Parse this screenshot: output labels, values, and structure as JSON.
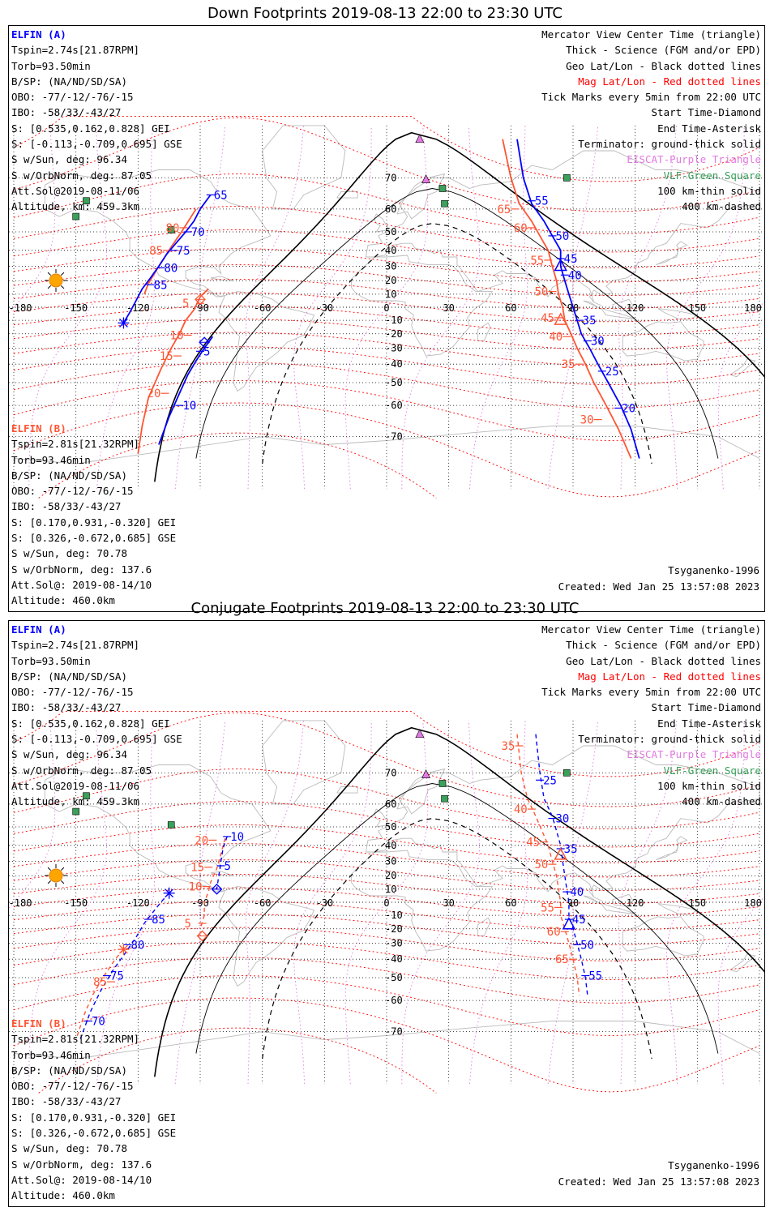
{
  "panels": [
    {
      "title": "Down Footprints 2019-08-13 22:00 to 23:30 UTC",
      "sat_a": {
        "name": "ELFIN (A)",
        "lines": [
          "Tspin=2.74s[21.87RPM]",
          "Torb=93.50min",
          "B/SP: (NA/ND/SD/SA)",
          "OBO: -77/-12/-76/-15",
          "IBO: -58/33/-43/27",
          "S: [0.535,0.162,0.828] GEI",
          "S: [-0.113,-0.709,0.695] GSE",
          "S w/Sun, deg: 96.34",
          "S w/OrbNorm, deg: 87.05",
          "Att.Sol@2019-08-11/06",
          "Altitude, km: 459.3km"
        ]
      },
      "sat_b": {
        "name": "ELFIN (B)",
        "lines": [
          "Tspin=2.81s[21.32RPM]",
          "Torb=93.46min",
          "B/SP: (NA/ND/SD/SA)",
          "OBO: -77/-12/-76/-15",
          "IBO: -58/33/-43/27",
          "S: [0.170,0.931,-0.320] GEI",
          "S: [0.326,-0.672,0.685] GSE",
          "S w/Sun, deg: 70.78",
          "S w/OrbNorm, deg: 137.6",
          "Att.Sol@: 2019-08-14/10",
          "Altitude: 460.0km"
        ]
      },
      "model": "Tsyganenko-1996",
      "created": "Created: Wed Jan 25 13:57:08 2023"
    },
    {
      "title": "Conjugate Footprints 2019-08-13 22:00 to 23:30 UTC",
      "sat_a": {
        "name": "ELFIN (A)",
        "lines": [
          "Tspin=2.74s[21.87RPM]",
          "Torb=93.50min",
          "B/SP: (NA/ND/SD/SA)",
          "OBO: -77/-12/-76/-15",
          "IBO: -58/33/-43/27",
          "S: [0.535,0.162,0.828] GEI",
          "S: [-0.113,-0.709,0.695] GSE",
          "S w/Sun, deg: 96.34",
          "S w/OrbNorm, deg: 87.05",
          "Att.Sol@2019-08-11/06",
          "Altitude, km: 459.3km"
        ]
      },
      "sat_b": {
        "name": "ELFIN (B)",
        "lines": [
          "Tspin=2.81s[21.32RPM]",
          "Torb=93.46min",
          "B/SP: (NA/ND/SD/SA)",
          "OBO: -77/-12/-76/-15",
          "IBO: -58/33/-43/27",
          "S: [0.170,0.931,-0.320] GEI",
          "S: [0.326,-0.672,0.685] GSE",
          "S w/Sun, deg: 70.78",
          "S w/OrbNorm, deg: 137.6",
          "Att.Sol@: 2019-08-14/10",
          "Altitude: 460.0km"
        ]
      },
      "model": "Tsyganenko-1996",
      "created": "Created: Wed Jan 25 13:57:08 2023"
    }
  ],
  "legend": [
    {
      "text": "Mercator View Center Time (triangle)",
      "color": "#000000"
    },
    {
      "text": "Thick - Science (FGM and/or EPD)",
      "color": "#000000"
    },
    {
      "text": "Geo Lat/Lon - Black dotted lines",
      "color": "#000000"
    },
    {
      "text": "Mag Lat/Lon - Red dotted lines",
      "color": "#ff0000"
    },
    {
      "text": "Tick Marks every 5min from 22:00 UTC",
      "color": "#000000"
    },
    {
      "text": "Start Time-Diamond",
      "color": "#000000"
    },
    {
      "text": "End Time-Asterisk",
      "color": "#000000"
    },
    {
      "text": "Terminator: ground-thick solid",
      "color": "#000000"
    },
    {
      "text": "EISCAT-Purple Triangle",
      "color": "#e07ae0"
    },
    {
      "text": "VLF-Green Square",
      "color": "#3aa05a"
    },
    {
      "text": "100 km-thin solid",
      "color": "#000000"
    },
    {
      "text": "400 km-dashed",
      "color": "#000000"
    }
  ],
  "map": {
    "lon_labels": [
      "-180",
      "-150",
      "-120",
      "-90",
      "-60",
      "-30",
      "0",
      "30",
      "60",
      "90",
      "120",
      "150",
      "180"
    ],
    "lat_labels": [
      "70",
      "60",
      "50",
      "40",
      "30",
      "20",
      "10",
      "0",
      "-10",
      "-20",
      "-30",
      "-40",
      "-50",
      "-60",
      "-70"
    ],
    "colors": {
      "sat_a": "#0000ff",
      "sat_b": "#ff5533",
      "mag_grid": "#ff0000",
      "geo_grid": "#000000",
      "eiscat": "#e07ae0",
      "vlf": "#3aa05a",
      "sun": "#ffa500",
      "coast": "#bbbbbb"
    }
  },
  "tracks": [
    {
      "a_left": [
        [
          -85,
          65
        ],
        [
          -90,
          60
        ],
        [
          -93,
          55
        ],
        [
          -97,
          50
        ],
        [
          -101,
          45
        ],
        [
          -106,
          38
        ],
        [
          -110,
          30
        ],
        [
          -114,
          22
        ],
        [
          -118,
          14
        ],
        [
          -121,
          5
        ],
        [
          -124,
          -4
        ],
        [
          -127,
          -12
        ]
      ],
      "a_left_ticks": [
        {
          "lon": -85,
          "lat": 65,
          "label": "65"
        },
        {
          "lon": -96,
          "lat": 50,
          "label": "70"
        },
        {
          "lon": -103,
          "lat": 40,
          "label": "75"
        },
        {
          "lon": -109,
          "lat": 29,
          "label": "80"
        },
        {
          "lon": -114,
          "lat": 17,
          "label": "85"
        }
      ],
      "a_end": [
        -127,
        -12
      ],
      "b_left": [
        [
          -92,
          60
        ],
        [
          -99,
          50
        ],
        [
          -104,
          42
        ],
        [
          -110,
          30
        ],
        [
          -115,
          18
        ],
        [
          -117,
          10
        ]
      ],
      "b_left_ticks": [
        {
          "lon": -98,
          "lat": 52,
          "label": "80"
        },
        {
          "lon": -106,
          "lat": 40,
          "label": "85"
        }
      ],
      "b_lower": [
        [
          -86,
          14
        ],
        [
          -90,
          8
        ],
        [
          -93,
          -2
        ],
        [
          -97,
          -10
        ],
        [
          -100,
          -20
        ],
        [
          -104,
          -30
        ],
        [
          -109,
          -43
        ],
        [
          -115,
          -57
        ],
        [
          -118,
          -67
        ],
        [
          -120,
          -74
        ]
      ],
      "b_lower_ticks": [
        {
          "lon": -90,
          "lat": 3,
          "label": "5"
        },
        {
          "lon": -96,
          "lat": -21,
          "label": "10"
        },
        {
          "lon": -101,
          "lat": -35,
          "label": "15"
        },
        {
          "lon": -107,
          "lat": -55,
          "label": "20"
        }
      ],
      "b_start": [
        -90,
        6
      ],
      "a_lower": [
        [
          -84,
          -22
        ],
        [
          -88,
          -30
        ],
        [
          -92,
          -38
        ],
        [
          -96,
          -46
        ],
        [
          -100,
          -55
        ],
        [
          -105,
          -64
        ],
        [
          -110,
          -72
        ]
      ],
      "a_lower_ticks": [
        {
          "lon": -90,
          "lat": -32,
          "label": "5"
        },
        {
          "lon": -100,
          "lat": -60,
          "label": "10"
        }
      ],
      "a_start": [
        -88,
        -26
      ],
      "a_right": [
        [
          63,
          78
        ],
        [
          66,
          70
        ],
        [
          70,
          62
        ],
        [
          76,
          55
        ],
        [
          80,
          48
        ],
        [
          84,
          40
        ],
        [
          84,
          30
        ],
        [
          86,
          20
        ],
        [
          88,
          10
        ],
        [
          90,
          0
        ],
        [
          92,
          -10
        ],
        [
          94,
          -20
        ],
        [
          98,
          -30
        ],
        [
          102,
          -40
        ],
        [
          107,
          -50
        ],
        [
          113,
          -60
        ],
        [
          118,
          -68
        ],
        [
          122,
          -75
        ]
      ],
      "a_right_ticks": [
        {
          "lon": 70,
          "lat": 63,
          "label": "55"
        },
        {
          "lon": 80,
          "lat": 48,
          "label": "50"
        },
        {
          "lon": 84,
          "lat": 35,
          "label": "45"
        },
        {
          "lon": 86,
          "lat": 24,
          "label": "40"
        },
        {
          "lon": 93,
          "lat": -10,
          "label": "35"
        },
        {
          "lon": 97,
          "lat": -25,
          "label": "30"
        },
        {
          "lon": 104,
          "lat": -44,
          "label": "25"
        },
        {
          "lon": 112,
          "lat": -61,
          "label": "20"
        }
      ],
      "a_tri": [
        84,
        30
      ],
      "b_right": [
        [
          56,
          78
        ],
        [
          60,
          70
        ],
        [
          64,
          62
        ],
        [
          70,
          55
        ],
        [
          74,
          48
        ],
        [
          78,
          40
        ],
        [
          80,
          30
        ],
        [
          82,
          20
        ],
        [
          83,
          10
        ],
        [
          85,
          0
        ],
        [
          86,
          -10
        ],
        [
          89,
          -20
        ],
        [
          92,
          -30
        ],
        [
          96,
          -40
        ],
        [
          100,
          -50
        ],
        [
          106,
          -60
        ],
        [
          112,
          -68
        ],
        [
          118,
          -75
        ]
      ],
      "b_right_ticks": [
        {
          "lon": 62,
          "lat": 60,
          "label": "65"
        },
        {
          "lon": 70,
          "lat": 52,
          "label": "60"
        },
        {
          "lon": 78,
          "lat": 34,
          "label": "55"
        },
        {
          "lon": 80,
          "lat": 12,
          "label": "50"
        },
        {
          "lon": 83,
          "lat": -8,
          "label": "45"
        },
        {
          "lon": 87,
          "lat": -22,
          "label": "40"
        },
        {
          "lon": 93,
          "lat": -40,
          "label": "35"
        },
        {
          "lon": 102,
          "lat": -65,
          "label": "30"
        }
      ],
      "b_tri": [
        84,
        -10
      ],
      "dashed": false
    },
    {
      "a_left": [
        [
          -77,
          45
        ],
        [
          -79,
          38
        ],
        [
          -80,
          30
        ],
        [
          -81,
          20
        ],
        [
          -82,
          10
        ]
      ],
      "a_left_ticks": [
        {
          "lon": -77,
          "lat": 45,
          "label": "10"
        },
        {
          "lon": -80,
          "lat": 27,
          "label": "5"
        }
      ],
      "a_start": [
        -82,
        10
      ],
      "b_left": [
        [
          -78,
          44
        ],
        [
          -80,
          35
        ],
        [
          -82,
          25
        ],
        [
          -85,
          15
        ],
        [
          -86,
          8
        ],
        [
          -88,
          0
        ],
        [
          -88,
          -10
        ],
        [
          -90,
          -20
        ]
      ],
      "b_left_ticks": [
        {
          "lon": -84,
          "lat": 43,
          "label": "20"
        },
        {
          "lon": -86,
          "lat": 26,
          "label": "15"
        },
        {
          "lon": -87,
          "lat": 12,
          "label": "10"
        },
        {
          "lon": -89,
          "lat": -16,
          "label": "5"
        }
      ],
      "b_start": [
        -89,
        -25
      ],
      "a_mid": [
        [
          -105,
          7
        ],
        [
          -109,
          0
        ],
        [
          -113,
          -8
        ],
        [
          -117,
          -16
        ],
        [
          -121,
          -26
        ],
        [
          -126,
          -36
        ],
        [
          -132,
          -46
        ],
        [
          -138,
          -56
        ],
        [
          -143,
          -64
        ],
        [
          -148,
          -72
        ]
      ],
      "a_mid_ticks": [
        {
          "lon": -115,
          "lat": -13,
          "label": "85"
        },
        {
          "lon": -125,
          "lat": -31,
          "label": "80"
        },
        {
          "lon": -135,
          "lat": -49,
          "label": "75"
        },
        {
          "lon": -144,
          "lat": -67,
          "label": "70"
        }
      ],
      "a_end": [
        -105,
        7
      ],
      "b_mid": [
        [
          -127,
          -34
        ],
        [
          -131,
          -40
        ],
        [
          -137,
          -50
        ],
        [
          -142,
          -58
        ],
        [
          -146,
          -65
        ],
        [
          -150,
          -72
        ]
      ],
      "b_mid_ticks": [
        {
          "lon": -133,
          "lat": -52,
          "label": "85"
        }
      ],
      "b_end": [
        -127,
        -34
      ],
      "a_right": [
        [
          72,
          78
        ],
        [
          74,
          70
        ],
        [
          76,
          62
        ],
        [
          80,
          55
        ],
        [
          82,
          48
        ],
        [
          84,
          40
        ],
        [
          85,
          30
        ],
        [
          86,
          20
        ],
        [
          87,
          10
        ],
        [
          88,
          0
        ],
        [
          88,
          -10
        ],
        [
          90,
          -20
        ],
        [
          92,
          -30
        ],
        [
          94,
          -40
        ],
        [
          96,
          -50
        ],
        [
          97,
          -58
        ]
      ],
      "a_right_ticks": [
        {
          "lon": 74,
          "lat": 68,
          "label": "25"
        },
        {
          "lon": 80,
          "lat": 54,
          "label": "30"
        },
        {
          "lon": 84,
          "lat": 38,
          "label": "35"
        },
        {
          "lon": 87,
          "lat": 8,
          "label": "40"
        },
        {
          "lon": 88,
          "lat": -13,
          "label": "45"
        },
        {
          "lon": 92,
          "lat": -31,
          "label": "50"
        },
        {
          "lon": 96,
          "lat": -49,
          "label": "55"
        }
      ],
      "a_tri": [
        88,
        -17
      ],
      "b_right": [
        [
          63,
          78
        ],
        [
          65,
          70
        ],
        [
          68,
          62
        ],
        [
          72,
          55
        ],
        [
          75,
          48
        ],
        [
          78,
          40
        ],
        [
          80,
          30
        ],
        [
          82,
          20
        ],
        [
          83,
          10
        ],
        [
          84,
          0
        ],
        [
          84,
          -10
        ],
        [
          86,
          -20
        ],
        [
          88,
          -30
        ],
        [
          90,
          -40
        ],
        [
          92,
          -50
        ],
        [
          93,
          -58
        ]
      ],
      "b_right_ticks": [
        {
          "lon": 64,
          "lat": 76,
          "label": "35"
        },
        {
          "lon": 70,
          "lat": 58,
          "label": "40"
        },
        {
          "lon": 76,
          "lat": 42,
          "label": "45"
        },
        {
          "lon": 80,
          "lat": 28,
          "label": "50"
        },
        {
          "lon": 83,
          "lat": -4,
          "label": "55"
        },
        {
          "lon": 86,
          "lat": -22,
          "label": "60"
        },
        {
          "lon": 90,
          "lat": -40,
          "label": "65"
        }
      ],
      "b_tri": [
        84,
        34
      ],
      "dashed": true
    }
  ]
}
